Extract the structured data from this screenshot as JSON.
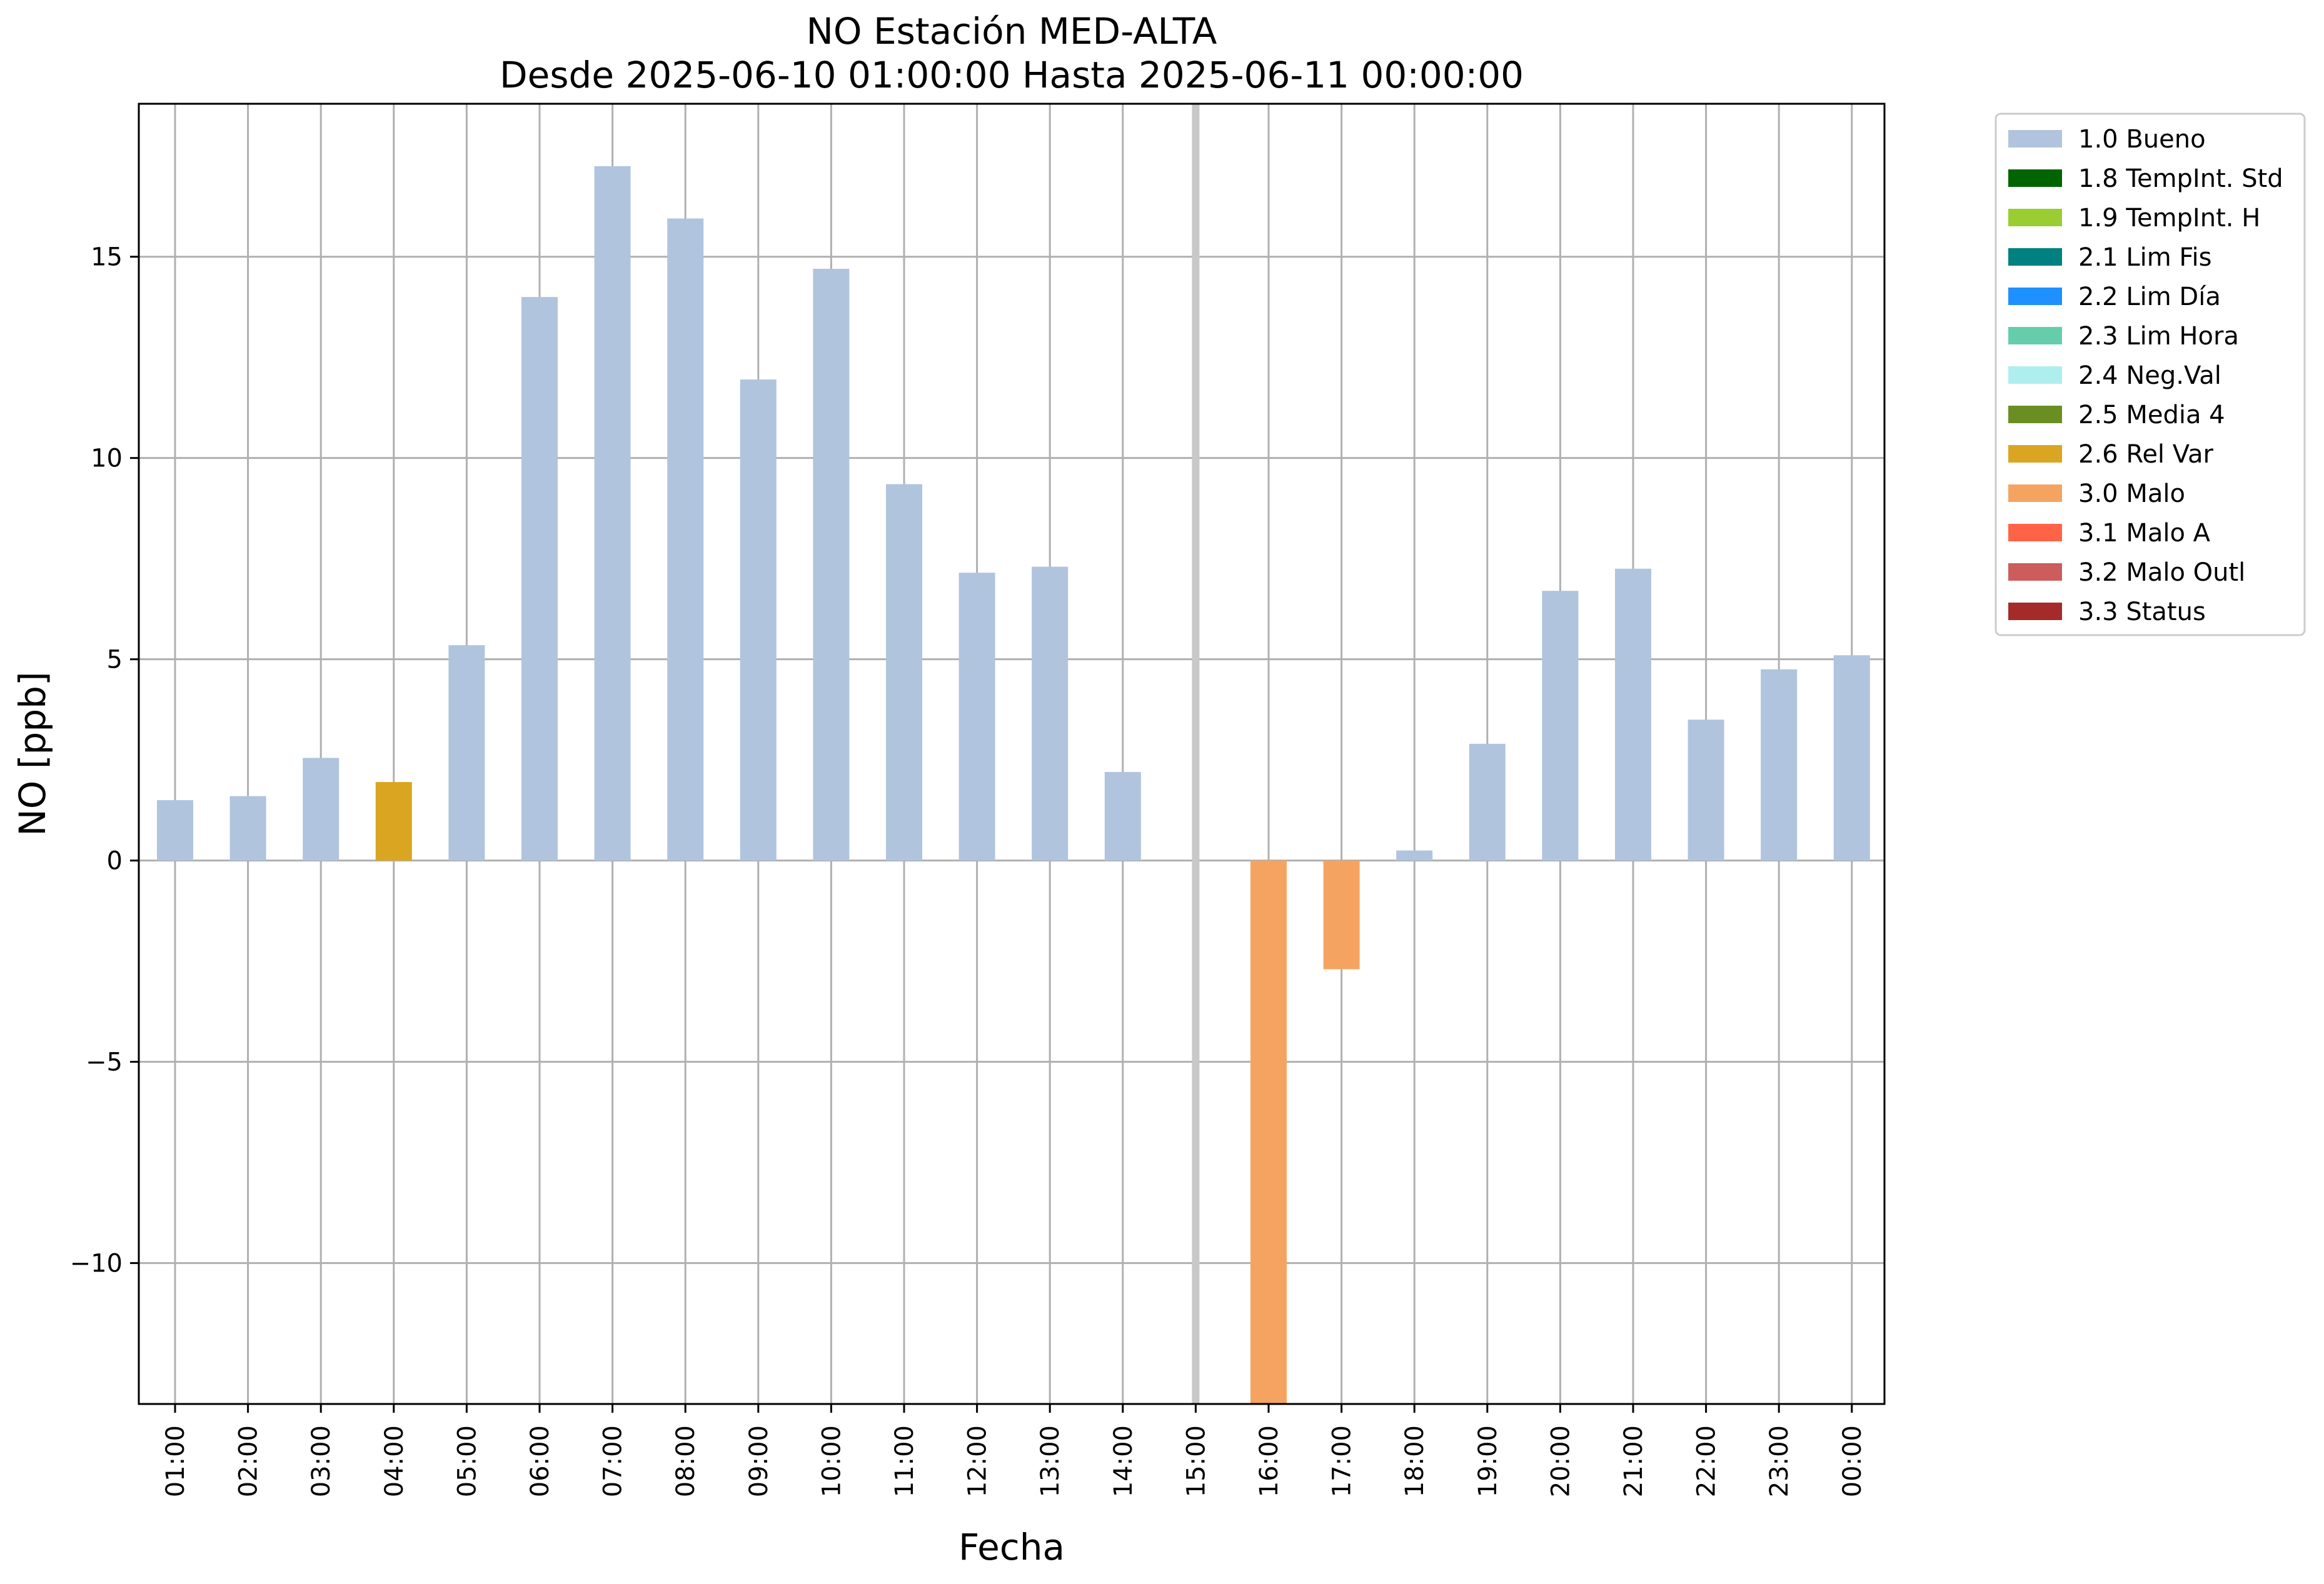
{
  "chart_data": {
    "type": "bar",
    "title": "NO Estación MED-ALTA",
    "subtitle": "Desde 2025-06-10 01:00:00 Hasta 2025-06-11 00:00:00",
    "xlabel": "Fecha",
    "ylabel": "NO [ppb]",
    "ylim": [
      -13.5,
      18.8
    ],
    "yticks": [
      -10,
      -5,
      0,
      5,
      10,
      15
    ],
    "ytick_labels": [
      "−10",
      "−5",
      "0",
      "5",
      "10",
      "15"
    ],
    "grid": true,
    "legend_position": "outside-top-right",
    "categories": [
      "01:00",
      "02:00",
      "03:00",
      "04:00",
      "05:00",
      "06:00",
      "07:00",
      "08:00",
      "09:00",
      "10:00",
      "11:00",
      "12:00",
      "13:00",
      "14:00",
      "15:00",
      "16:00",
      "17:00",
      "18:00",
      "19:00",
      "20:00",
      "21:00",
      "22:00",
      "23:00",
      "00:00"
    ],
    "values": [
      1.5,
      1.6,
      2.55,
      1.95,
      5.35,
      14.0,
      17.25,
      15.95,
      11.95,
      14.7,
      9.35,
      7.15,
      7.3,
      2.2,
      null,
      -13.5,
      -2.7,
      0.25,
      2.9,
      6.7,
      7.25,
      3.5,
      4.75,
      5.1
    ],
    "flags": [
      "1.0 Bueno",
      "1.0 Bueno",
      "1.0 Bueno",
      "2.6 Rel Var",
      "1.0 Bueno",
      "1.0 Bueno",
      "1.0 Bueno",
      "1.0 Bueno",
      "1.0 Bueno",
      "1.0 Bueno",
      "1.0 Bueno",
      "1.0 Bueno",
      "1.0 Bueno",
      "1.0 Bueno",
      null,
      "3.0 Malo",
      "3.0 Malo",
      "1.0 Bueno",
      "1.0 Bueno",
      "1.0 Bueno",
      "1.0 Bueno",
      "1.0 Bueno",
      "1.0 Bueno",
      "1.0 Bueno"
    ],
    "marker_category": "15:00",
    "marker_color": "#c8c8c8",
    "legend": [
      {
        "label": "1.0 Bueno",
        "color": "#b0c4de"
      },
      {
        "label": "1.8 TempInt. Std",
        "color": "#006400"
      },
      {
        "label": "1.9 TempInt. H",
        "color": "#9acd32"
      },
      {
        "label": "2.1 Lim Fis",
        "color": "#008080"
      },
      {
        "label": "2.2 Lim Día",
        "color": "#1e90ff"
      },
      {
        "label": "2.3 Lim Hora",
        "color": "#66cdaa"
      },
      {
        "label": "2.4 Neg.Val",
        "color": "#afeeee"
      },
      {
        "label": "2.5 Media 4",
        "color": "#6b8e23"
      },
      {
        "label": "2.6 Rel Var",
        "color": "#daa520"
      },
      {
        "label": "3.0 Malo",
        "color": "#f4a460"
      },
      {
        "label": "3.1 Malo A",
        "color": "#ff6347"
      },
      {
        "label": "3.2 Malo Outl",
        "color": "#cd5c5c"
      },
      {
        "label": "3.3 Status",
        "color": "#a52a2a"
      }
    ]
  }
}
